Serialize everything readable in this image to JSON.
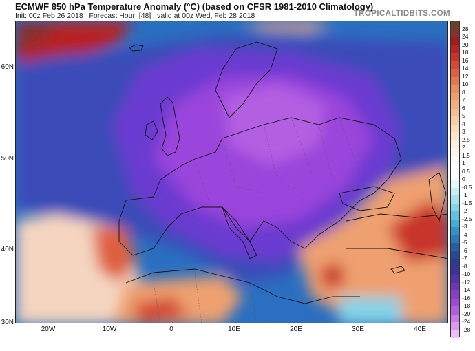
{
  "header": {
    "title": "ECMWF 850 hPa Temperature Anomaly (°C) (based on CFSR 1981-2010 Climatology)",
    "init": "Init: 00z Feb 26 2018",
    "forecast_hour": "Forecast Hour: [48]",
    "valid": "valid at 00z Wed, Feb 28 2018",
    "brand": "TROPICALTIDBITS.COM"
  },
  "axes": {
    "lat_labels": [
      "60N",
      "50N",
      "40N",
      "30N"
    ],
    "lon_labels": [
      "20W",
      "10W",
      "0",
      "10E",
      "20E",
      "30E",
      "40E"
    ]
  },
  "colorbar": {
    "labels": [
      "28",
      "24",
      "20",
      "18",
      "16",
      "14",
      "12",
      "10",
      "8",
      "7",
      "6",
      "5",
      "4",
      "3",
      "2.5",
      "2",
      "1.5",
      "1",
      "0.5",
      "0",
      "-0.5",
      "-1",
      "-1.5",
      "-2",
      "-2.5",
      "-3",
      "-4",
      "-5",
      "-6",
      "-7",
      "-8",
      "-10",
      "-12",
      "-14",
      "-16",
      "-18",
      "-20",
      "-24",
      "-28"
    ],
    "colors": [
      "#6b4226",
      "#8a2f2f",
      "#a11c1c",
      "#b72222",
      "#c8342c",
      "#d44a34",
      "#de6040",
      "#e5774e",
      "#ea8d5f",
      "#ee9f70",
      "#f2b081",
      "#f5c093",
      "#f7cfa6",
      "#f9dcb9",
      "#fbe6cb",
      "#fcefdc",
      "#fdf6eb",
      "#fefbf5",
      "#ffffff",
      "#ffffff",
      "#e8f7f8",
      "#c8eef2",
      "#a6e2ec",
      "#84d3e6",
      "#62c2de",
      "#45acd4",
      "#3392c6",
      "#2a78b6",
      "#275fa6",
      "#274896",
      "#2d3a8e",
      "#3b3398",
      "#5333a8",
      "#6c38b8",
      "#8540c6",
      "#9b4ad2",
      "#b35ede",
      "#c87ae6",
      "#dc9aee",
      "#eebef6"
    ]
  },
  "map": {
    "regions": {
      "cold_core_color": "#9a44dc",
      "cold_color": "#6a3bd0",
      "cool_color": "#3f4fb8",
      "mild_cool_color": "#2a6fc0",
      "warm_color": "#e07a4a",
      "hot_color": "#c8342c",
      "near_zero_color": "#f7f0ea"
    }
  }
}
